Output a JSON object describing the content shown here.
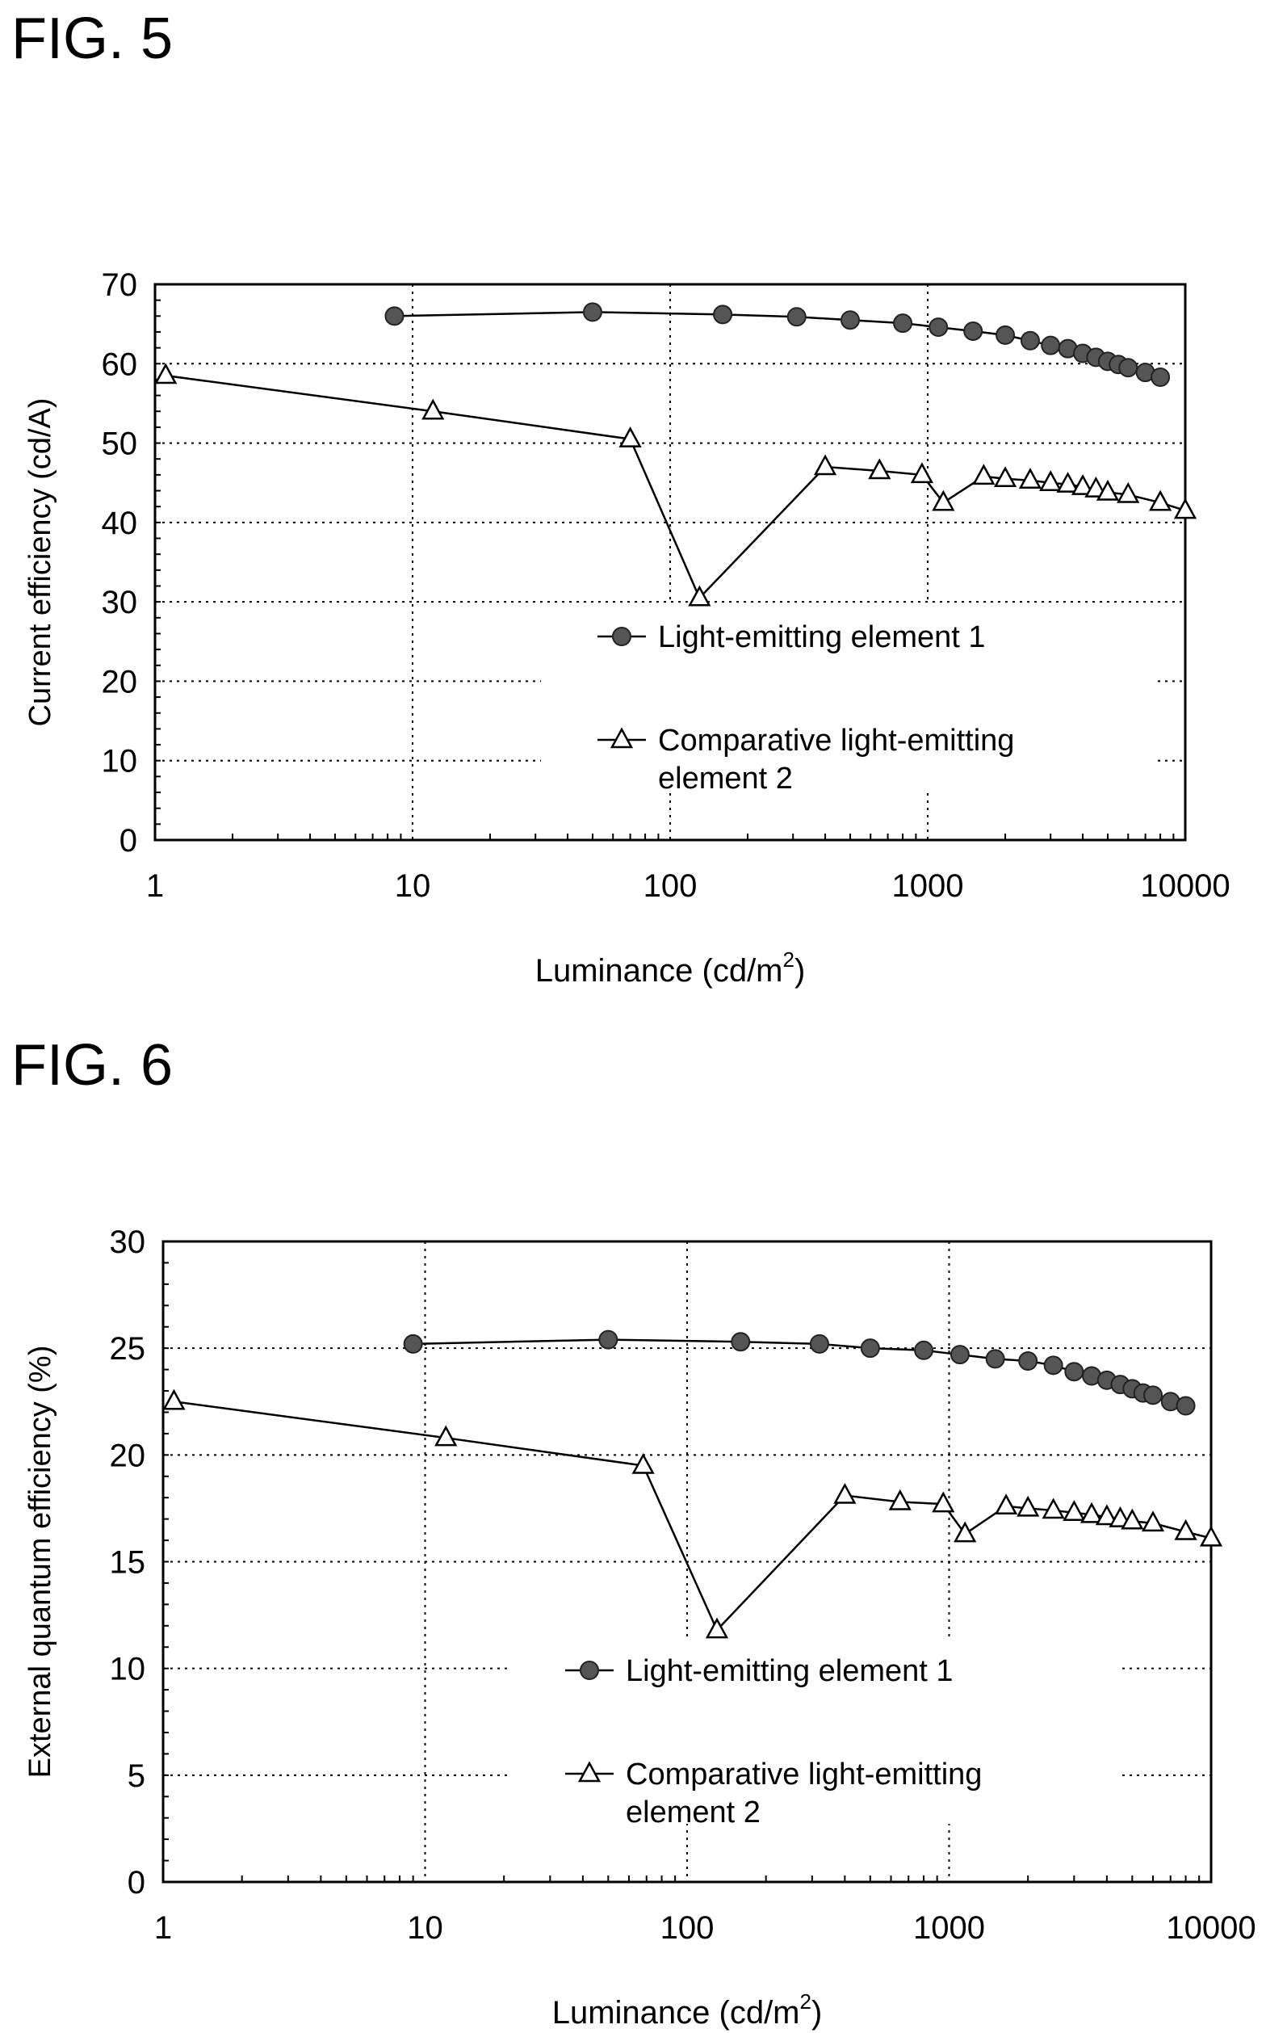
{
  "figures": [
    {
      "label": "FIG. 5"
    },
    {
      "label": "FIG. 6"
    }
  ],
  "chart_data": [
    {
      "type": "line",
      "xlabel": "Luminance (cd/m",
      "xlabel_sup": "2",
      "xlabel_end": ")",
      "ylabel": "Current efficiency (cd/A)",
      "xscale": "log",
      "xlim": [
        1,
        10000
      ],
      "ylim": [
        0,
        70
      ],
      "xticks": [
        "1",
        "10",
        "100",
        "1000",
        "10000"
      ],
      "yticks": [
        "0",
        "10",
        "20",
        "30",
        "40",
        "50",
        "60",
        "70"
      ],
      "legend_lines": [
        [
          "Light-emitting element 1"
        ],
        [
          "Comparative light-emitting",
          "element 2"
        ]
      ],
      "grid": "dotted",
      "series": [
        {
          "name": "Light-emitting element 1",
          "marker": "circle",
          "x": [
            8.5,
            50,
            160,
            310,
            500,
            800,
            1100,
            1500,
            2000,
            2500,
            3000,
            3500,
            4000,
            4500,
            5000,
            5500,
            6000,
            7000,
            8000
          ],
          "y": [
            66.0,
            66.5,
            66.2,
            65.9,
            65.5,
            65.1,
            64.6,
            64.1,
            63.6,
            62.9,
            62.3,
            61.9,
            61.3,
            60.8,
            60.3,
            59.9,
            59.5,
            58.9,
            58.3
          ]
        },
        {
          "name": "Comparative light-emitting element 2",
          "marker": "triangle",
          "x": [
            1.1,
            12,
            70,
            130,
            400,
            650,
            950,
            1150,
            1650,
            2000,
            2500,
            3000,
            3500,
            4000,
            4500,
            5000,
            6000,
            8000,
            10000
          ],
          "y": [
            58.5,
            54.0,
            50.5,
            30.5,
            47.0,
            46.5,
            46.0,
            42.5,
            45.8,
            45.5,
            45.3,
            45.0,
            44.8,
            44.5,
            44.2,
            43.8,
            43.5,
            42.5,
            41.5
          ]
        }
      ]
    },
    {
      "type": "line",
      "xlabel": "Luminance (cd/m",
      "xlabel_sup": "2",
      "xlabel_end": ")",
      "ylabel": "External quantum efficiency (%)",
      "xscale": "log",
      "xlim": [
        1,
        10000
      ],
      "ylim": [
        0,
        30
      ],
      "xticks": [
        "1",
        "10",
        "100",
        "1000",
        "10000"
      ],
      "yticks": [
        "0",
        "5",
        "10",
        "15",
        "20",
        "25",
        "30"
      ],
      "legend_lines": [
        [
          "Light-emitting element 1"
        ],
        [
          "Comparative light-emitting",
          "element 2"
        ]
      ],
      "grid": "dotted",
      "series": [
        {
          "name": "Light-emitting element 1",
          "marker": "circle",
          "x": [
            9,
            50,
            160,
            320,
            500,
            800,
            1100,
            1500,
            2000,
            2500,
            3000,
            3500,
            4000,
            4500,
            5000,
            5500,
            6000,
            7000,
            8000
          ],
          "y": [
            25.2,
            25.4,
            25.3,
            25.2,
            25.0,
            24.9,
            24.7,
            24.5,
            24.4,
            24.2,
            23.9,
            23.7,
            23.5,
            23.3,
            23.1,
            22.9,
            22.8,
            22.5,
            22.3
          ]
        },
        {
          "name": "Comparative light-emitting element 2",
          "marker": "triangle",
          "x": [
            1.1,
            12,
            68,
            130,
            400,
            650,
            950,
            1150,
            1650,
            2000,
            2500,
            3000,
            3500,
            4000,
            4500,
            5000,
            6000,
            8000,
            10000
          ],
          "y": [
            22.5,
            20.8,
            19.5,
            11.8,
            18.1,
            17.8,
            17.7,
            16.3,
            17.6,
            17.5,
            17.4,
            17.3,
            17.2,
            17.1,
            17.0,
            16.9,
            16.8,
            16.4,
            16.1
          ]
        }
      ]
    }
  ]
}
